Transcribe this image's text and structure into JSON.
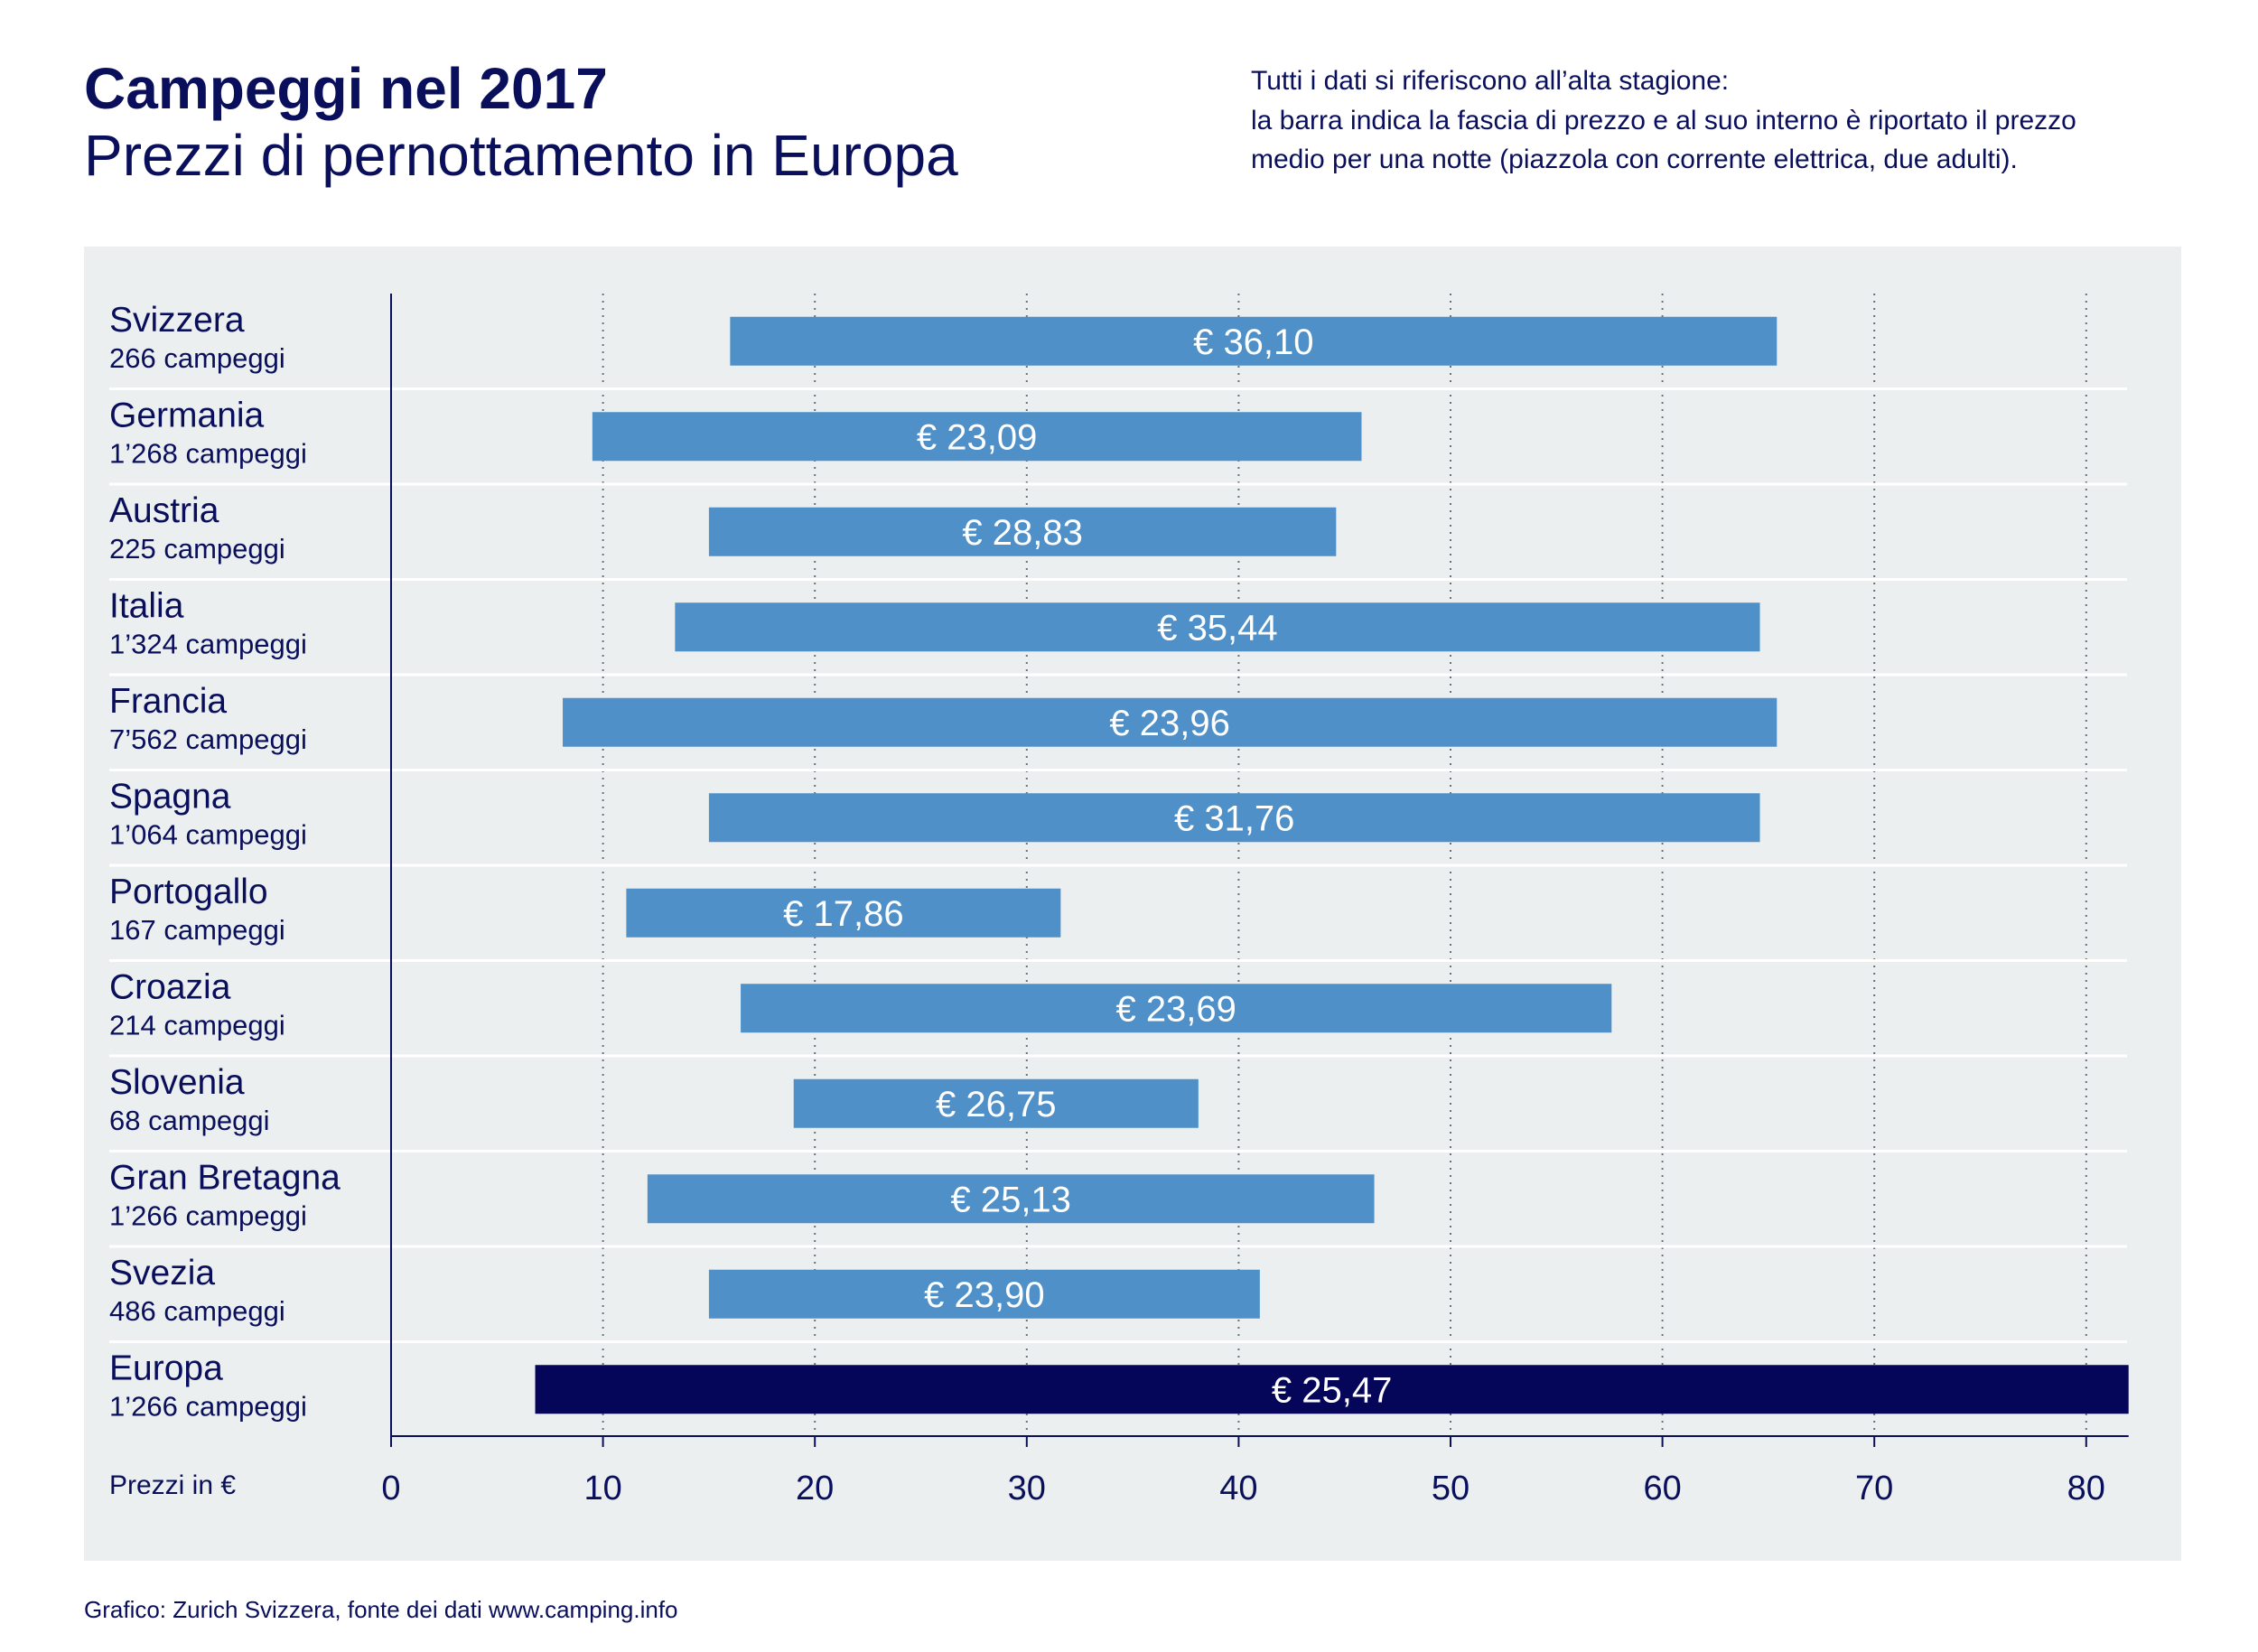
{
  "title": "Campeggi nel 2017",
  "subtitle": "Prezzi di pernottamento in Europa",
  "note": [
    "Tutti i dati si riferiscono all’alta stagione:",
    "la barra indica la fascia di prezzo e al suo interno è riportato il prezzo",
    "medio per una notte (piazzola con corrente elettrica, due adulti)."
  ],
  "footer": "Grafico: Zurich Svizzera, fonte dei dati www.camping.info",
  "colors": {
    "title": "#0a0f5c",
    "bar": "#5090c8",
    "highlight_bar": "#05065a",
    "panel": "#ebeff0"
  },
  "chart_data": {
    "type": "bar",
    "orientation": "horizontal-range",
    "xlabel": "Prezzi in €",
    "xlim": [
      0,
      82
    ],
    "xticks": [
      0,
      10,
      20,
      30,
      40,
      50,
      60,
      70,
      80
    ],
    "series": [
      {
        "country": "Svizzera",
        "campsites": "266 campeggi",
        "min": 16,
        "max": 65.4,
        "avg_label": "€ 36,10",
        "avg": 36.1
      },
      {
        "country": "Germania",
        "campsites": "1’268 campeggi",
        "min": 9.5,
        "max": 45.8,
        "avg_label": "€ 23,09",
        "avg": 23.09
      },
      {
        "country": "Austria",
        "campsites": "225 campeggi",
        "min": 15,
        "max": 44.6,
        "avg_label": "€ 28,83",
        "avg": 28.83
      },
      {
        "country": "Italia",
        "campsites": "1’324 campeggi",
        "min": 13.4,
        "max": 64.6,
        "avg_label": "€ 35,44",
        "avg": 35.44
      },
      {
        "country": "Francia",
        "campsites": "7’562 campeggi",
        "min": 8.1,
        "max": 65.4,
        "avg_label": "€ 23,96",
        "avg": 23.96
      },
      {
        "country": "Spagna",
        "campsites": "1’064 campeggi",
        "min": 15,
        "max": 64.6,
        "avg_label": "€ 31,76",
        "avg": 31.76
      },
      {
        "country": "Portogallo",
        "campsites": "167 campeggi",
        "min": 11.1,
        "max": 31.6,
        "avg_label": "€ 17,86",
        "avg": 17.86
      },
      {
        "country": "Croazia",
        "campsites": "214 campeggi",
        "min": 16.5,
        "max": 57.6,
        "avg_label": "€ 23,69",
        "avg": 23.69
      },
      {
        "country": "Slovenia",
        "campsites": "68 campeggi",
        "min": 19,
        "max": 38.1,
        "avg_label": "€ 26,75",
        "avg": 26.75
      },
      {
        "country": "Gran Bretagna",
        "campsites": "1’266 campeggi",
        "min": 12.1,
        "max": 46.4,
        "avg_label": "€ 25,13",
        "avg": 25.13
      },
      {
        "country": "Svezia",
        "campsites": "486 campeggi",
        "min": 15,
        "max": 41,
        "avg_label": "€ 23,90",
        "avg": 23.9
      },
      {
        "country": "Europa",
        "campsites": "1’266 campeggi",
        "min": 6.8,
        "max": 82,
        "avg_label": "€ 25,47",
        "avg": 25.47,
        "highlight": true
      }
    ]
  }
}
